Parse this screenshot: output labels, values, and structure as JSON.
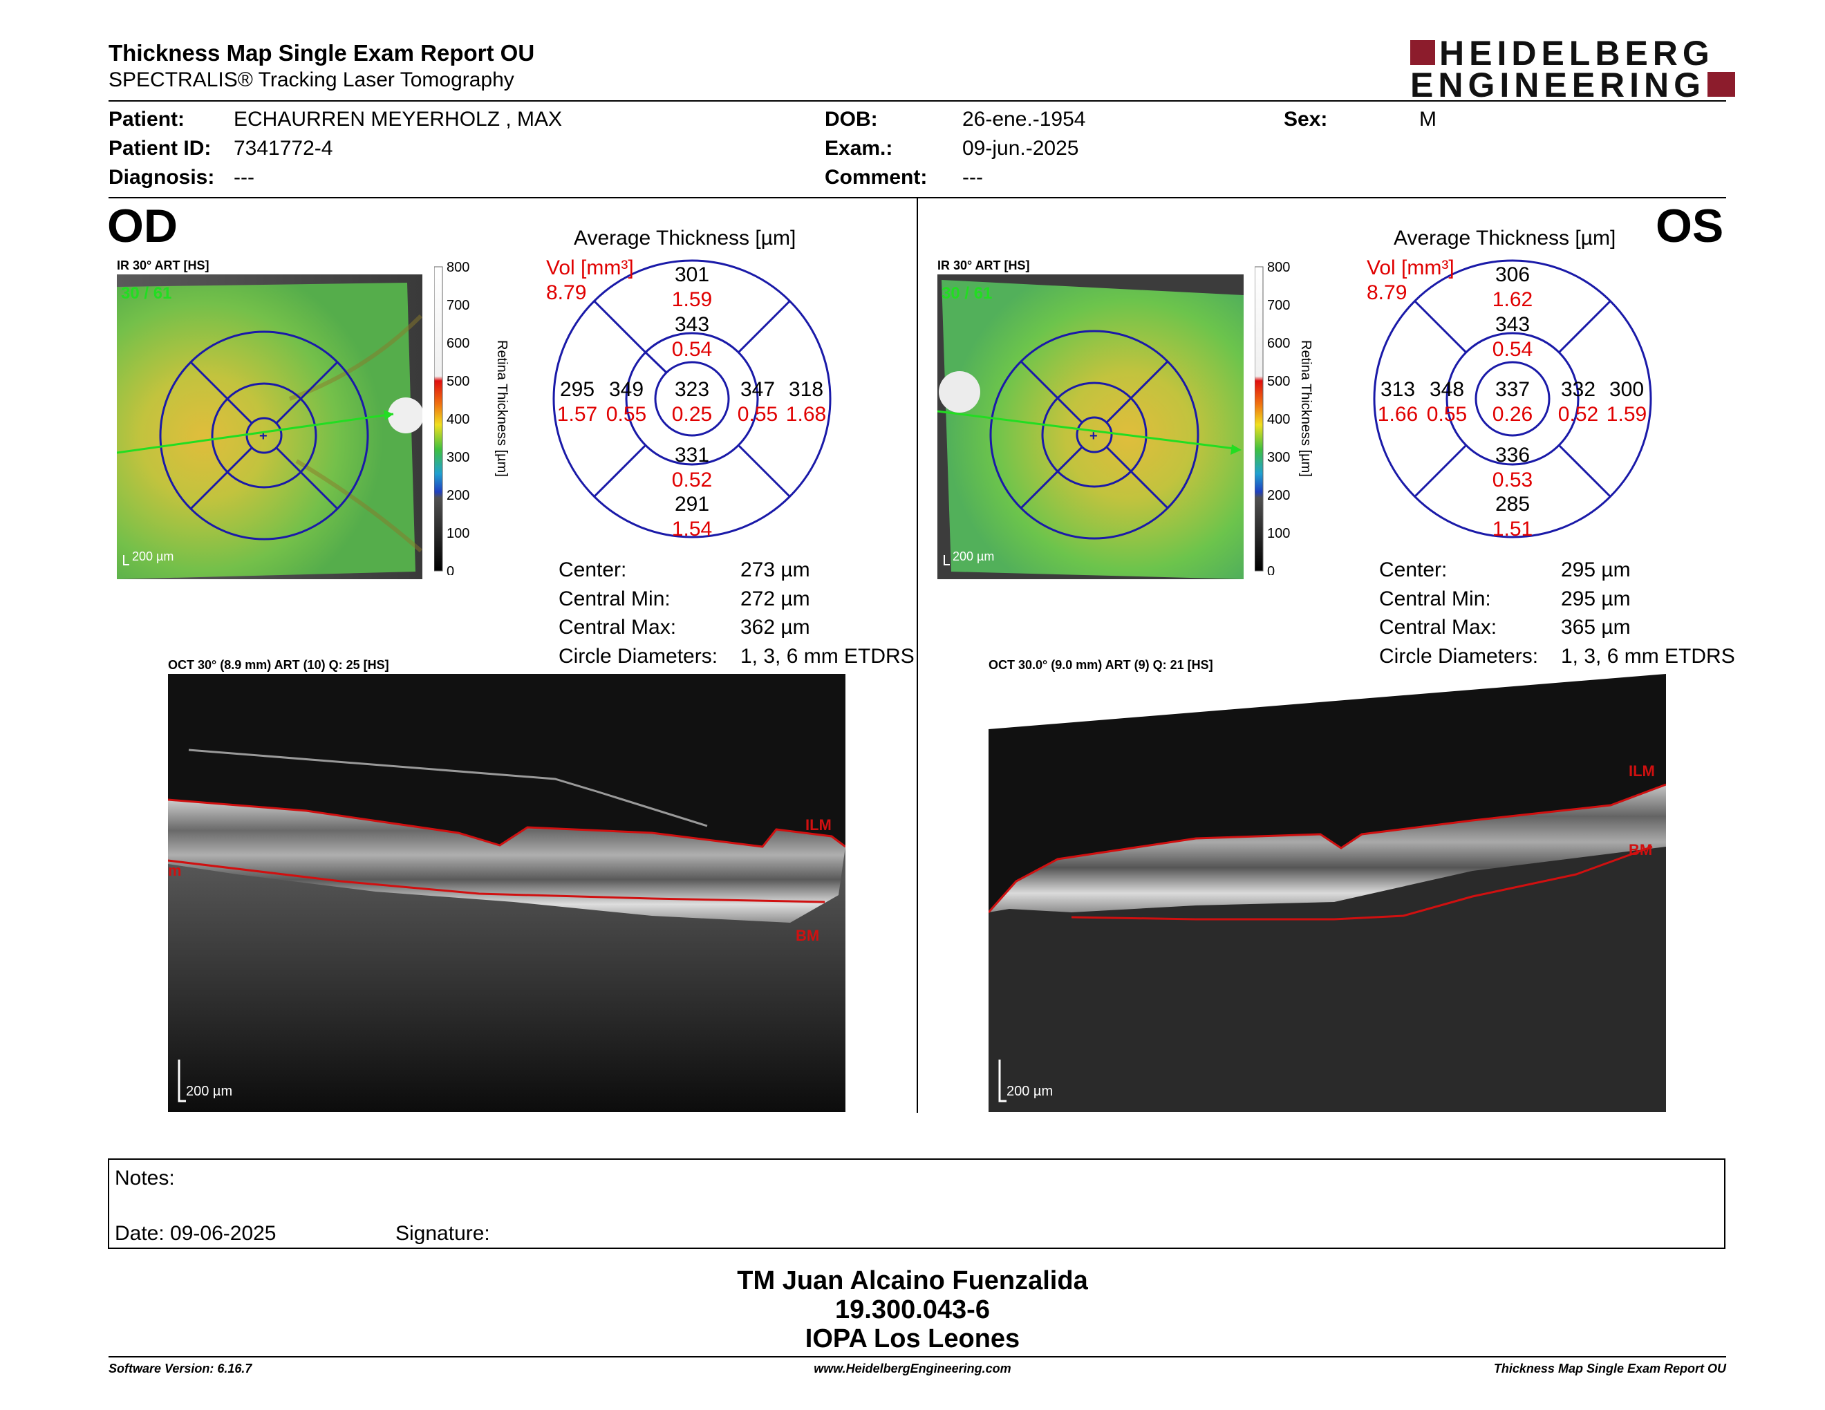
{
  "header": {
    "title": "Thickness Map Single Exam Report OU",
    "subtitle": "SPECTRALIS® Tracking Laser Tomography",
    "logo_line1": "HEIDELBERG",
    "logo_line2": "ENGINEERING"
  },
  "patient": {
    "patient_label": "Patient:",
    "patient_value": "ECHAURREN MEYERHOLZ , MAX",
    "id_label": "Patient ID:",
    "id_value": "7341772-4",
    "diagnosis_label": "Diagnosis:",
    "diagnosis_value": "---",
    "dob_label": "DOB:",
    "dob_value": "26-ene.-1954",
    "exam_label": "Exam.:",
    "exam_value": "09-jun.-2025",
    "comment_label": "Comment:",
    "comment_value": "---",
    "sex_label": "Sex:",
    "sex_value": "M"
  },
  "od": {
    "eye": "OD",
    "ir_caption": "IR 30° ART [HS]",
    "frames": "30 / 61",
    "scale": "200 µm",
    "avg_title": "Average Thickness [µm]",
    "vol_label": "Vol [mm³]",
    "vol_value": "8.79",
    "grid": {
      "center": {
        "t": "323",
        "v": "0.25"
      },
      "inner_sup": {
        "t": "343",
        "v": "0.54"
      },
      "inner_inf": {
        "t": "331",
        "v": "0.52"
      },
      "inner_left": {
        "t": "349",
        "v": "0.55"
      },
      "inner_right": {
        "t": "347",
        "v": "0.55"
      },
      "outer_sup": {
        "t": "301",
        "v": "1.59"
      },
      "outer_inf": {
        "t": "291",
        "v": "1.54"
      },
      "outer_left": {
        "t": "295",
        "v": "1.57"
      },
      "outer_right": {
        "t": "318",
        "v": "1.68"
      }
    },
    "stats": {
      "center_label": "Center:",
      "center_value": "273 µm",
      "min_label": "Central Min:",
      "min_value": "272 µm",
      "max_label": "Central Max:",
      "max_value": "362 µm",
      "diam_label": "Circle Diameters:",
      "diam_value": "1, 3, 6 mm ETDRS"
    },
    "oct_caption": "OCT 30° (8.9 mm) ART (10) Q: 25 [HS]",
    "oct_scale": "200 µm",
    "ilm": "ILM",
    "bm": "BM",
    "edge_label": "m"
  },
  "os": {
    "eye": "OS",
    "ir_caption": "IR 30° ART [HS]",
    "frames": "30 / 61",
    "scale": "200 µm",
    "avg_title": "Average Thickness [µm]",
    "vol_label": "Vol [mm³]",
    "vol_value": "8.79",
    "grid": {
      "center": {
        "t": "337",
        "v": "0.26"
      },
      "inner_sup": {
        "t": "343",
        "v": "0.54"
      },
      "inner_inf": {
        "t": "336",
        "v": "0.53"
      },
      "inner_left": {
        "t": "348",
        "v": "0.55"
      },
      "inner_right": {
        "t": "332",
        "v": "0.52"
      },
      "outer_sup": {
        "t": "306",
        "v": "1.62"
      },
      "outer_inf": {
        "t": "285",
        "v": "1.51"
      },
      "outer_left": {
        "t": "313",
        "v": "1.66"
      },
      "outer_right": {
        "t": "300",
        "v": "1.59"
      }
    },
    "stats": {
      "center_label": "Center:",
      "center_value": "295 µm",
      "min_label": "Central Min:",
      "min_value": "295 µm",
      "max_label": "Central Max:",
      "max_value": "365 µm",
      "diam_label": "Circle Diameters:",
      "diam_value": "1, 3, 6 mm ETDRS"
    },
    "oct_caption": "OCT 30.0° (9.0 mm) ART (9) Q: 21 [HS]",
    "oct_scale": "200 µm",
    "ilm": "ILM",
    "bm": "BM"
  },
  "colorbar": {
    "ticks": [
      "800",
      "700",
      "600",
      "500",
      "400",
      "300",
      "200",
      "100",
      "0"
    ],
    "label": "Retina Thickness [µm]"
  },
  "notes": {
    "notes_label": "Notes:",
    "date_label": "Date: 09-06-2025",
    "signature_label": "Signature:"
  },
  "technician": {
    "name": "TM Juan Alcaino Fuenzalida",
    "id": "19.300.043-6",
    "place": "IOPA Los Leones"
  },
  "footer": {
    "software": "Software Version: 6.16.7",
    "website": "www.HeidelbergEngineering.com",
    "report": "Thickness Map Single Exam Report OU"
  },
  "colors": {
    "grid_blue": "#1a1aa8",
    "volume_red": "#e00000",
    "brand_red": "#8c1c2c",
    "frame_green": "#22dd22"
  }
}
